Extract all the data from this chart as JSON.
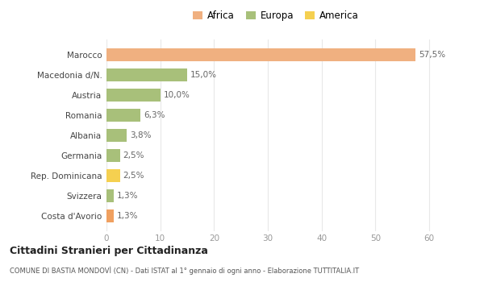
{
  "categories": [
    "Costa d'Avorio",
    "Svizzera",
    "Rep. Dominicana",
    "Germania",
    "Albania",
    "Romania",
    "Austria",
    "Macedonia d/N.",
    "Marocco"
  ],
  "values": [
    1.3,
    1.3,
    2.5,
    2.5,
    3.8,
    6.3,
    10.0,
    15.0,
    57.5
  ],
  "colors": [
    "#f0a060",
    "#a8c07a",
    "#f5d050",
    "#a8c07a",
    "#a8c07a",
    "#a8c07a",
    "#a8c07a",
    "#a8c07a",
    "#f0b080"
  ],
  "labels": [
    "1,3%",
    "1,3%",
    "2,5%",
    "2,5%",
    "3,8%",
    "6,3%",
    "10,0%",
    "15,0%",
    "57,5%"
  ],
  "continent_colors": {
    "Africa": "#f0b080",
    "Europa": "#a8c07a",
    "America": "#f5d050"
  },
  "title": "Cittadini Stranieri per Cittadinanza",
  "subtitle": "COMUNE DI BASTIA MONDOVÌ (CN) - Dati ISTAT al 1° gennaio di ogni anno - Elaborazione TUTTITALIA.IT",
  "xlim": [
    0,
    63
  ],
  "xticks": [
    0,
    10,
    20,
    30,
    40,
    50,
    60
  ],
  "bar_height": 0.65,
  "background_color": "#ffffff",
  "grid_color": "#e8e8e8"
}
